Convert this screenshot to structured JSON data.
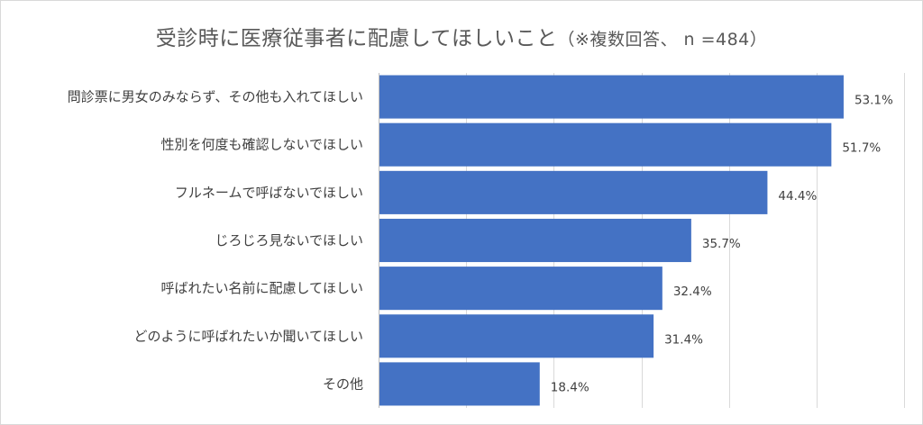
{
  "chart_data": {
    "type": "bar",
    "orientation": "horizontal",
    "title": "受診時に医療従事者に配慮してほしいこと",
    "subtitle": "（※複数回答、 n =484）",
    "categories": [
      "問診票に男女のみならず、その他も入れてほしい",
      "性別を何度も確認しないでほしい",
      "フルネームで呼ばないでほしい",
      "じろじろ見ないでほしい",
      "呼ばれたい名前に配慮してほしい",
      "どのように呼ばれたいか聞いてほしい",
      "その他"
    ],
    "values": [
      53.1,
      51.7,
      44.4,
      35.7,
      32.4,
      31.4,
      18.4
    ],
    "value_labels": [
      "53.1%",
      "51.7%",
      "44.4%",
      "35.7%",
      "32.4%",
      "31.4%",
      "18.4%"
    ],
    "xlim": [
      0,
      60
    ],
    "grid": true,
    "legend": "none",
    "bar_color": "#4472C4",
    "grid_color": "#d9d9d9"
  }
}
